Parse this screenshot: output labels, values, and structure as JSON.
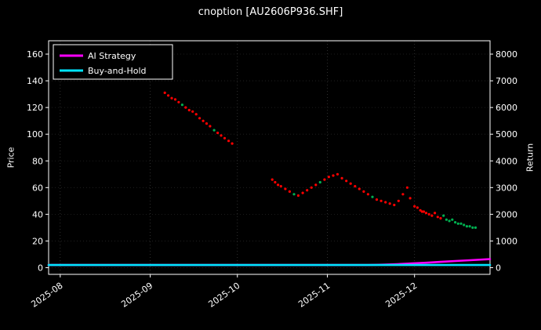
{
  "chart_data": {
    "type": "scatter+line",
    "title": "cnoption [AU2606P936.SHF]",
    "x_axis": {
      "tick_labels": [
        "2025-08",
        "2025-09",
        "2025-10",
        "2025-11",
        "2025-12"
      ],
      "tick_days": [
        4,
        35,
        65,
        96,
        126
      ],
      "domain_days": [
        0,
        152
      ]
    },
    "y_left": {
      "label": "Price",
      "ticks": [
        0,
        20,
        40,
        60,
        80,
        100,
        120,
        140,
        160
      ],
      "range": [
        -5,
        170
      ]
    },
    "y_right": {
      "label": "Return",
      "ticks": [
        0,
        1000,
        2000,
        3000,
        4000,
        5000,
        6000,
        7000,
        8000
      ],
      "range": [
        -250,
        8500
      ]
    },
    "legend": [
      {
        "label": "AI Strategy",
        "color": "#ff00ff"
      },
      {
        "label": "Buy-and-Hold",
        "color": "#00e5ff"
      }
    ],
    "scatter": {
      "name": "option-price-dots",
      "colors": {
        "r": "#ff0000",
        "g": "#00b050"
      },
      "points": [
        [
          40,
          131,
          "r"
        ],
        [
          41.2,
          129,
          "r"
        ],
        [
          42.4,
          127,
          "r"
        ],
        [
          43.6,
          126,
          "r"
        ],
        [
          44.8,
          124,
          "r"
        ],
        [
          46,
          122,
          "g"
        ],
        [
          47.2,
          120,
          "r"
        ],
        [
          48.4,
          118,
          "r"
        ],
        [
          49.6,
          117,
          "r"
        ],
        [
          50.8,
          115,
          "r"
        ],
        [
          52,
          112,
          "r"
        ],
        [
          53.2,
          110,
          "r"
        ],
        [
          54.4,
          108,
          "r"
        ],
        [
          55.6,
          106,
          "r"
        ],
        [
          57,
          103,
          "g"
        ],
        [
          58.2,
          101,
          "r"
        ],
        [
          59.4,
          99,
          "r"
        ],
        [
          60.6,
          97,
          "r"
        ],
        [
          62,
          95,
          "r"
        ],
        [
          63.2,
          93,
          "r"
        ],
        [
          77,
          66,
          "r"
        ],
        [
          78,
          64,
          "r"
        ],
        [
          79,
          62,
          "r"
        ],
        [
          80,
          61,
          "r"
        ],
        [
          81.5,
          59,
          "r"
        ],
        [
          83,
          57,
          "r"
        ],
        [
          84.5,
          55,
          "g"
        ],
        [
          86,
          54,
          "r"
        ],
        [
          87.5,
          56,
          "r"
        ],
        [
          89,
          58,
          "r"
        ],
        [
          90.5,
          60,
          "r"
        ],
        [
          92,
          62,
          "r"
        ],
        [
          93.5,
          64,
          "g"
        ],
        [
          95,
          66,
          "r"
        ],
        [
          96.5,
          68,
          "r"
        ],
        [
          98,
          69,
          "r"
        ],
        [
          99.5,
          70,
          "r"
        ],
        [
          101,
          67,
          "r"
        ],
        [
          102.5,
          65,
          "r"
        ],
        [
          104,
          63,
          "r"
        ],
        [
          105.5,
          61,
          "r"
        ],
        [
          107,
          59,
          "r"
        ],
        [
          108.5,
          57,
          "r"
        ],
        [
          110,
          55,
          "r"
        ],
        [
          111.5,
          53,
          "g"
        ],
        [
          113,
          51,
          "r"
        ],
        [
          114.5,
          50,
          "r"
        ],
        [
          116,
          49,
          "r"
        ],
        [
          117.5,
          48,
          "r"
        ],
        [
          119,
          47,
          "r"
        ],
        [
          120.5,
          50,
          "r"
        ],
        [
          122,
          55,
          "r"
        ],
        [
          123.5,
          60,
          "r"
        ],
        [
          124.5,
          52,
          "r"
        ],
        [
          126,
          46,
          "r"
        ],
        [
          127,
          45,
          "r"
        ],
        [
          128,
          43,
          "r"
        ],
        [
          128.6,
          42,
          "r"
        ],
        [
          129.2,
          42,
          "r"
        ],
        [
          130,
          41,
          "r"
        ],
        [
          131,
          40,
          "r"
        ],
        [
          132,
          39,
          "r"
        ],
        [
          133,
          41,
          "r"
        ],
        [
          134,
          38,
          "r"
        ],
        [
          135,
          37,
          "r"
        ],
        [
          136,
          39,
          "g"
        ],
        [
          137,
          36,
          "g"
        ],
        [
          138,
          35,
          "g"
        ],
        [
          139,
          36,
          "g"
        ],
        [
          140,
          34,
          "g"
        ],
        [
          141,
          33,
          "g"
        ],
        [
          142,
          33,
          "g"
        ],
        [
          143,
          32,
          "g"
        ],
        [
          144,
          31,
          "g"
        ],
        [
          145,
          31,
          "g"
        ],
        [
          146,
          30,
          "g"
        ],
        [
          147,
          30,
          "g"
        ]
      ]
    },
    "series": [
      {
        "name": "AI Strategy",
        "color": "#ff00ff",
        "axis": "right",
        "points": [
          [
            0,
            100
          ],
          [
            110,
            100
          ],
          [
            115,
            112
          ],
          [
            120,
            132
          ],
          [
            125,
            158
          ],
          [
            130,
            186
          ],
          [
            135,
            216
          ],
          [
            140,
            248
          ],
          [
            145,
            278
          ],
          [
            152,
            320
          ]
        ]
      },
      {
        "name": "Buy-and-Hold",
        "color": "#00e5ff",
        "axis": "right",
        "points": [
          [
            0,
            100
          ],
          [
            152,
            100
          ]
        ]
      }
    ],
    "colors": {
      "background": "#000000",
      "text": "#ffffff",
      "axis": "#ffffff",
      "grid": "#3a3a3a"
    }
  }
}
